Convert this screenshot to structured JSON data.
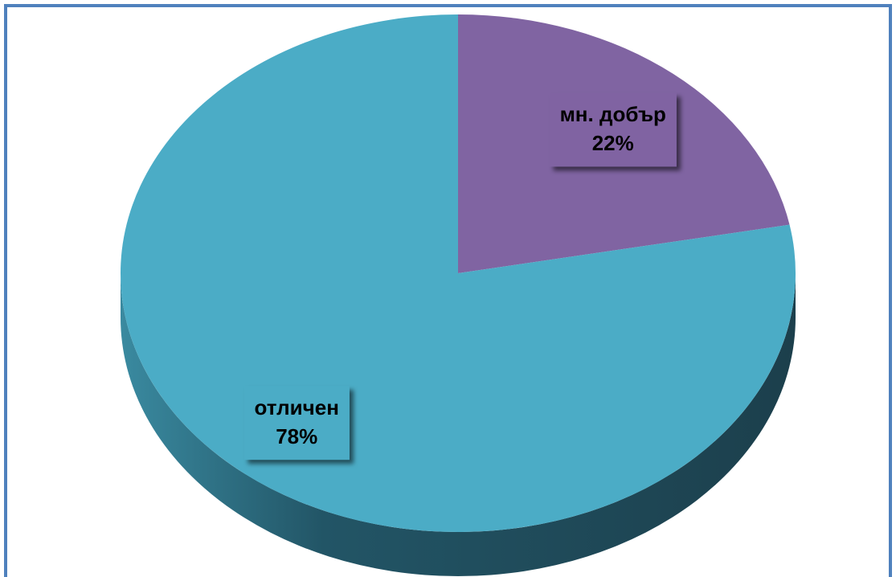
{
  "chart_data": {
    "type": "pie3d",
    "categories": [
      "мн. добър",
      "отличен"
    ],
    "values": [
      22,
      78
    ],
    "value_labels": [
      "22%",
      "78%"
    ],
    "colors": [
      "#8064a2",
      "#4bacc6"
    ]
  }
}
